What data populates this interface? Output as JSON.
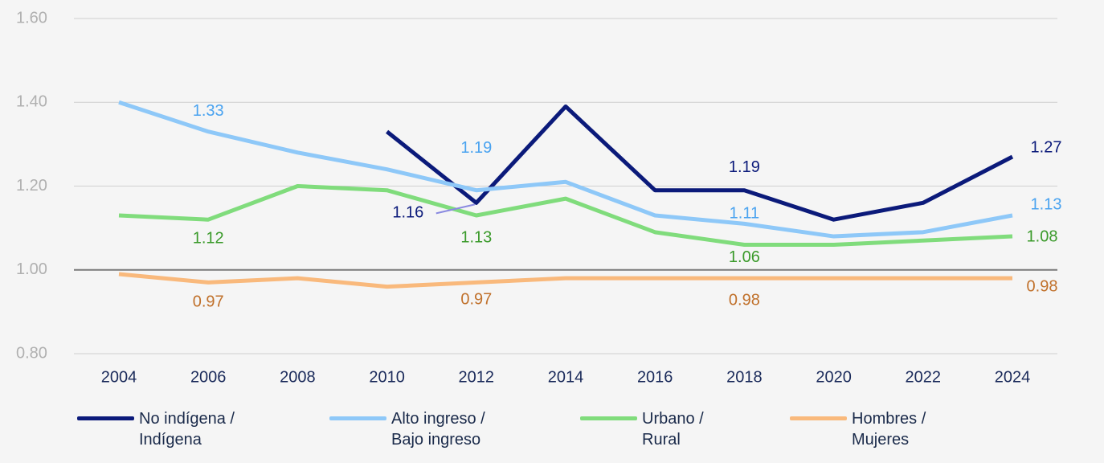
{
  "chart_data": {
    "type": "line",
    "categories": [
      "2004",
      "2006",
      "2008",
      "2010",
      "2012",
      "2014",
      "2016",
      "2018",
      "2020",
      "2022",
      "2024"
    ],
    "series": [
      {
        "name": "No indígena / Indígena",
        "color": "#0b1a7a",
        "label_color": "#0b1a7a",
        "values": [
          null,
          null,
          null,
          1.33,
          1.16,
          1.39,
          1.19,
          1.19,
          1.12,
          1.16,
          1.27
        ],
        "value_labels": [
          null,
          null,
          null,
          null,
          "1.16",
          null,
          null,
          "1.19",
          null,
          null,
          "1.27"
        ]
      },
      {
        "name": "Alto ingreso / Bajo ingreso",
        "color": "#8ec8f8",
        "label_color": "#4aa3f0",
        "values": [
          1.4,
          1.33,
          1.28,
          1.24,
          1.19,
          1.21,
          1.13,
          1.11,
          1.08,
          1.09,
          1.13
        ],
        "value_labels": [
          null,
          "1.33",
          null,
          null,
          "1.19",
          null,
          null,
          "1.11",
          null,
          null,
          "1.13"
        ]
      },
      {
        "name": "Urbano / Rural",
        "color": "#80dc7c",
        "label_color": "#3a9a2a",
        "values": [
          1.13,
          1.12,
          1.2,
          1.19,
          1.13,
          1.17,
          1.09,
          1.06,
          1.06,
          1.07,
          1.08
        ],
        "value_labels": [
          null,
          "1.12",
          null,
          null,
          "1.13",
          null,
          null,
          "1.06",
          null,
          null,
          "1.08"
        ]
      },
      {
        "name": "Hombres / Mujeres",
        "color": "#f9b97c",
        "label_color": "#c0702a",
        "values": [
          0.99,
          0.97,
          0.98,
          0.96,
          0.97,
          0.98,
          0.98,
          0.98,
          0.98,
          0.98,
          0.98
        ],
        "value_labels": [
          null,
          "0.97",
          null,
          null,
          "0.97",
          null,
          null,
          "0.98",
          null,
          null,
          "0.98"
        ]
      }
    ],
    "ylim": [
      0.8,
      1.6
    ],
    "yticks": [
      {
        "value": 0.8,
        "label": "0.80"
      },
      {
        "value": 1.0,
        "label": "1.00"
      },
      {
        "value": 1.2,
        "label": "1.20"
      },
      {
        "value": 1.4,
        "label": "1.40"
      },
      {
        "value": 1.6,
        "label": "1.60"
      }
    ],
    "grid": true,
    "reference_line": 1,
    "legend": "bottom"
  }
}
